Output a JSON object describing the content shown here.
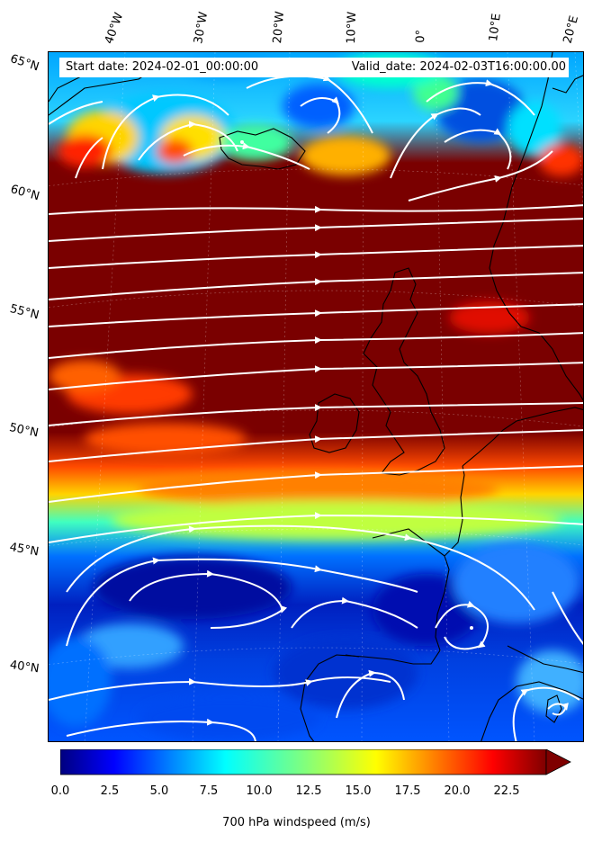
{
  "header": {
    "start_date": "Start date: 2024-02-01_00:00:00",
    "valid_date": "Valid_date: 2024-02-03T16:00:00.00"
  },
  "longitude_labels": [
    "40°W",
    "30°W",
    "20°W",
    "10°W",
    "0°",
    "10°E",
    "20°E"
  ],
  "latitude_labels": [
    "65°N",
    "60°N",
    "55°N",
    "50°N",
    "45°N",
    "40°N"
  ],
  "colorbar": {
    "label": "700 hPa windspeed (m/s)",
    "ticks": [
      "0.0",
      "2.5",
      "5.0",
      "7.5",
      "10.0",
      "12.5",
      "15.0",
      "17.5",
      "20.0",
      "22.5"
    ],
    "min": 0,
    "max": 25,
    "extend": "max",
    "colormap": "jet"
  },
  "map": {
    "variable": "700 hPa windspeed",
    "units": "m/s",
    "overlay": "white streamlines",
    "land_outline_color": "#000000",
    "streamline_color": "#ffffff",
    "gridlines": true
  }
}
